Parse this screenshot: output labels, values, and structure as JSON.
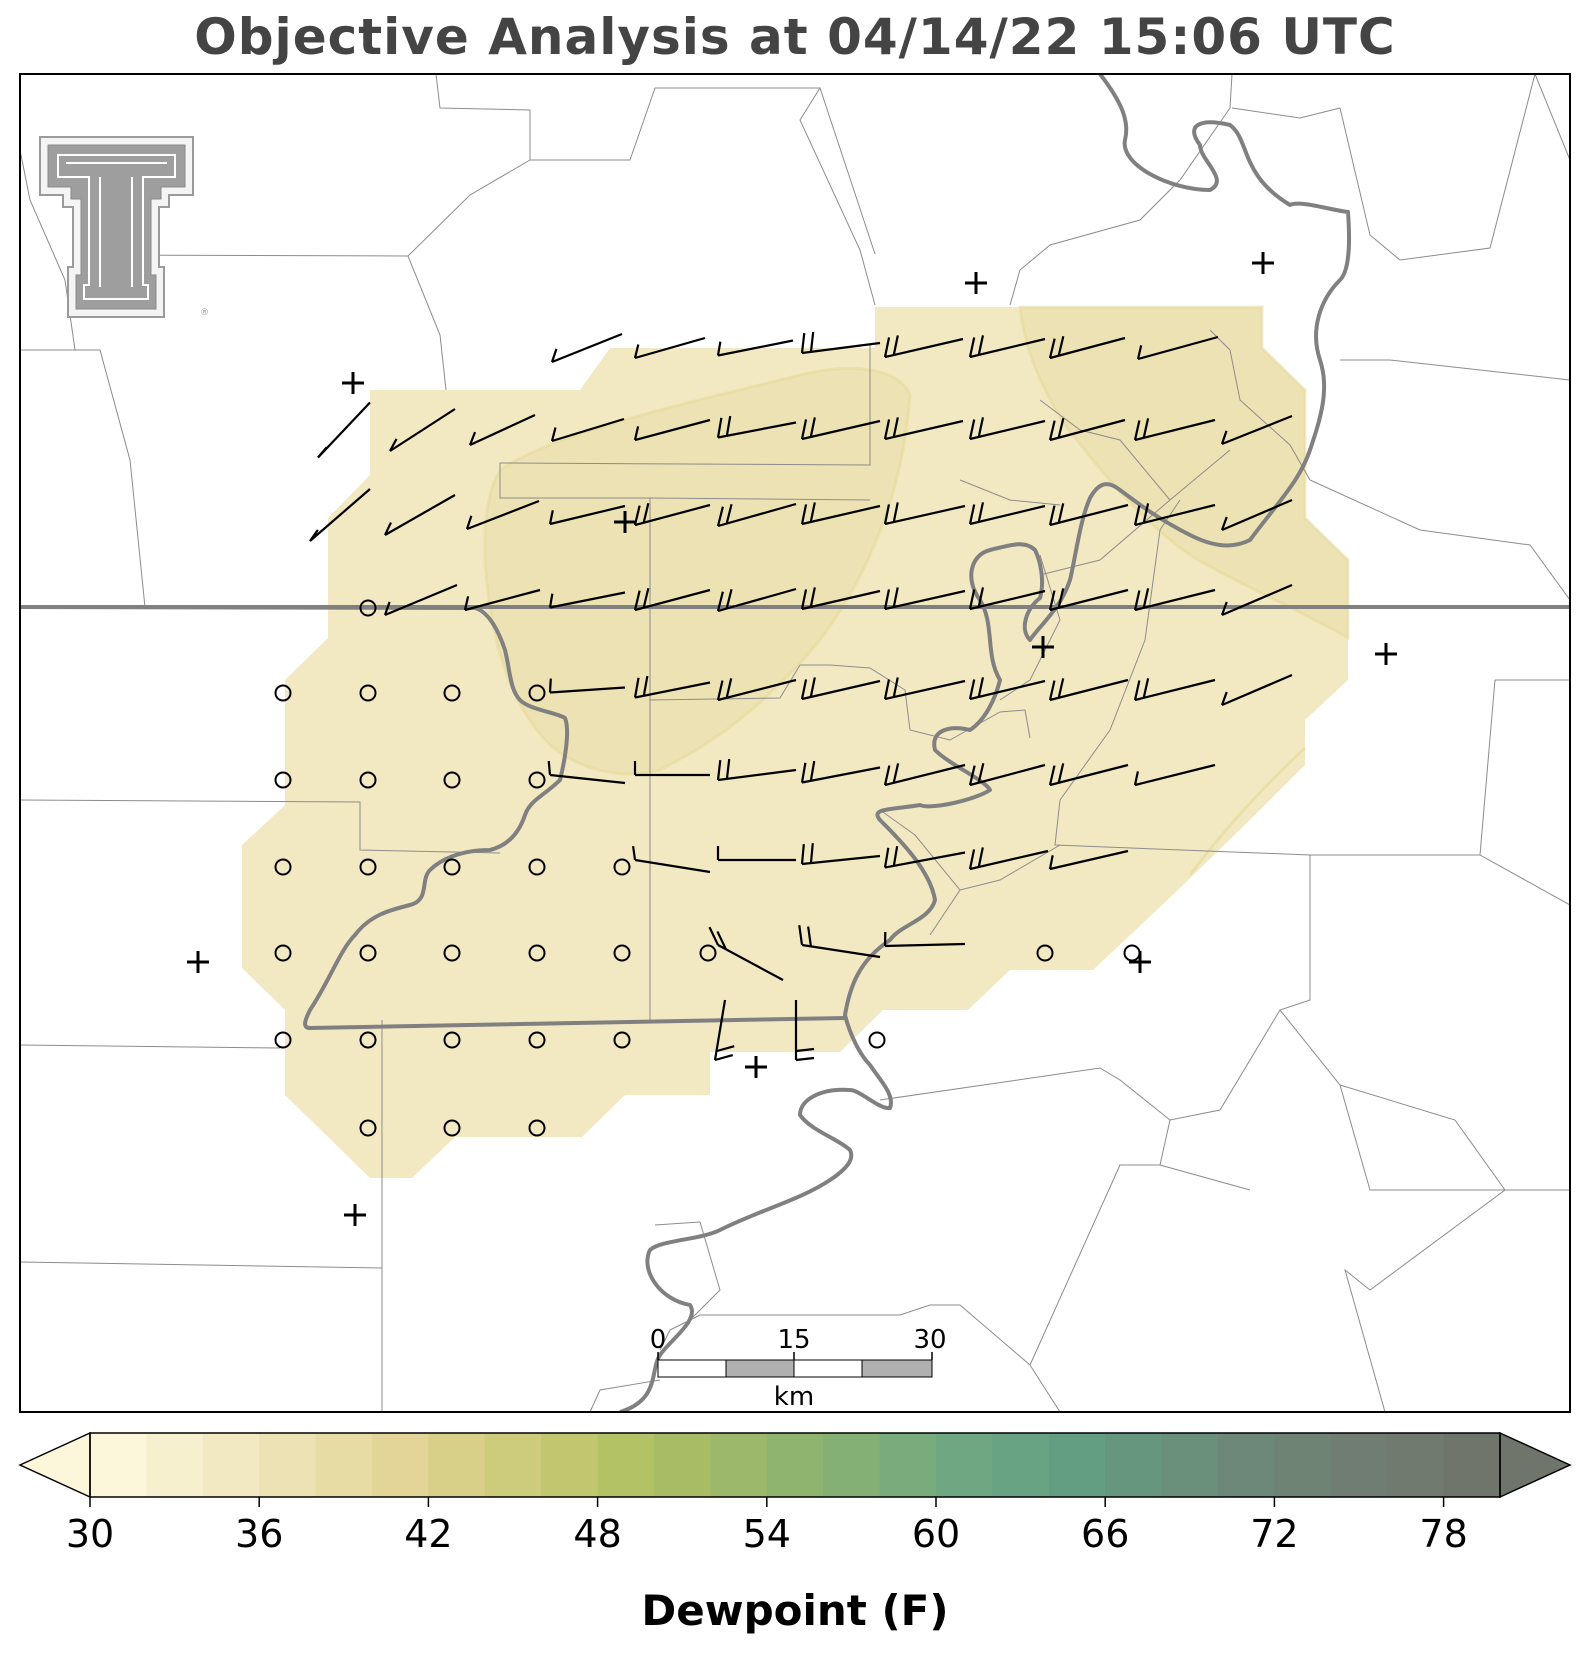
{
  "title": "Objective Analysis at 04/14/22 15:06 UTC",
  "colorbar": {
    "label": "Dewpoint (F)",
    "tick_labels": [
      "30",
      "36",
      "42",
      "48",
      "54",
      "60",
      "66",
      "72",
      "78"
    ],
    "min": 30,
    "max": 80,
    "colors": [
      "#fcf7db",
      "#f7f0cf",
      "#f2e9c2",
      "#ede2b3",
      "#e8dca5",
      "#e3d597",
      "#d8cf88",
      "#cccc7a",
      "#c0c76e",
      "#b4c266",
      "#a8bc66",
      "#9cb86a",
      "#8fb46f",
      "#84b076",
      "#79ab7d",
      "#6fa783",
      "#68a384",
      "#639e82",
      "#66967e",
      "#6a8f7b",
      "#6d8878",
      "#6f8375",
      "#707d72",
      "#717a6f",
      "#6f756a"
    ]
  },
  "scale_bar": {
    "labels": [
      "0",
      "15",
      "30"
    ],
    "unit": "km"
  },
  "logo": {
    "text": "TT"
  },
  "analysis_field": {
    "variable": "Dewpoint (F)",
    "fill_level_outer_F": "36-38",
    "fill_level_inner_F": "38-40"
  }
}
